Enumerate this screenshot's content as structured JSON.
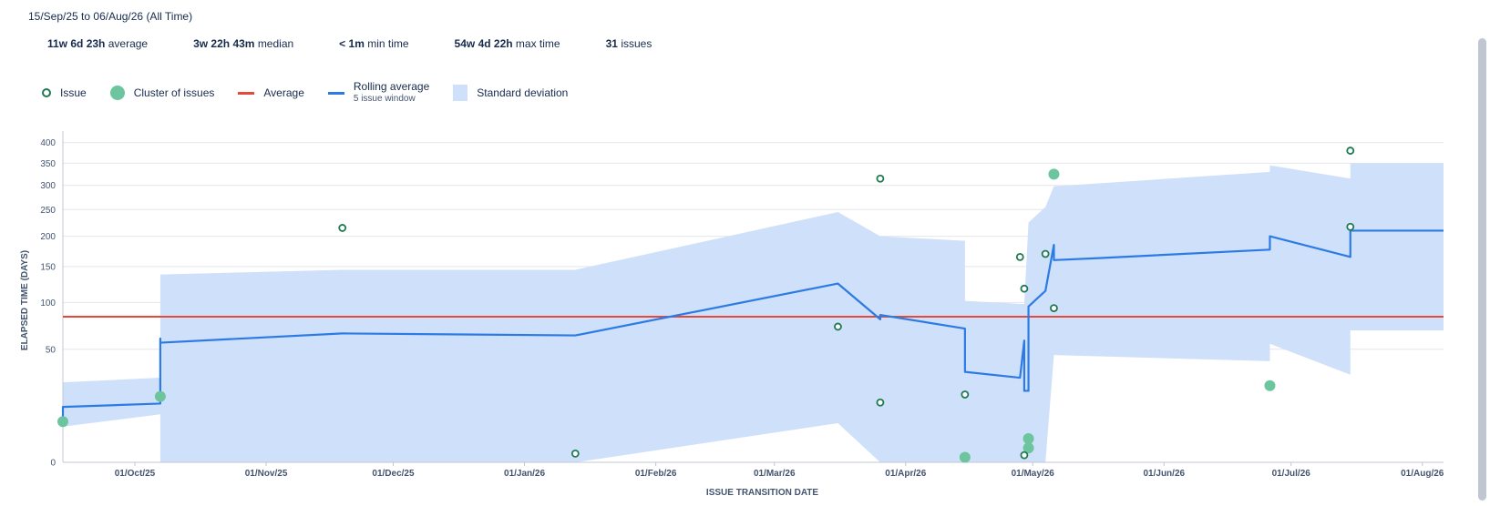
{
  "header": {
    "range": "15/Sep/25 to 06/Aug/26 (All Time)",
    "stats": [
      {
        "value": "11w 6d 23h",
        "label": "average"
      },
      {
        "value": "3w 22h 43m",
        "label": "median"
      },
      {
        "value": "< 1m",
        "label": "min time"
      },
      {
        "value": "54w 4d 22h",
        "label": "max time"
      },
      {
        "value": "31",
        "label": "issues"
      }
    ]
  },
  "legend": {
    "issue": "Issue",
    "cluster": "Cluster of issues",
    "average": "Average",
    "rolling": "Rolling average",
    "rolling_sub": "5 issue window",
    "std": "Standard deviation"
  },
  "colors": {
    "issue_stroke": "#1f7a52",
    "cluster_fill": "#6cc59e",
    "average_line": "#e5493a",
    "rolling_line": "#2c7be5",
    "std_band": "#cfe0fa",
    "grid": "#e4e6ea"
  },
  "chart_data": {
    "type": "scatter",
    "xlabel": "ISSUE TRANSITION DATE",
    "ylabel": "ELAPSED TIME (DAYS)",
    "x_scale": "date",
    "y_scale": "sqrt",
    "xlim": [
      "2025-09-14",
      "2026-08-06"
    ],
    "ylim": [
      0,
      420
    ],
    "y_ticks": [
      0,
      50,
      100,
      150,
      200,
      250,
      300,
      350,
      400
    ],
    "x_ticks": [
      {
        "date": "2025-10-01",
        "label": "01/Oct/25"
      },
      {
        "date": "2025-11-01",
        "label": "01/Nov/25"
      },
      {
        "date": "2025-12-01",
        "label": "01/Dec/25"
      },
      {
        "date": "2026-01-01",
        "label": "01/Jan/26"
      },
      {
        "date": "2026-02-01",
        "label": "01/Feb/26"
      },
      {
        "date": "2026-03-01",
        "label": "01/Mar/26"
      },
      {
        "date": "2026-04-01",
        "label": "01/Apr/26"
      },
      {
        "date": "2026-05-01",
        "label": "01/May/26"
      },
      {
        "date": "2026-06-01",
        "label": "01/Jun/26"
      },
      {
        "date": "2026-07-01",
        "label": "01/Jul/26"
      },
      {
        "date": "2026-08-01",
        "label": "01/Aug/26"
      }
    ],
    "average": 83,
    "issues": [
      {
        "x": "2025-11-19",
        "y": 215
      },
      {
        "x": "2026-01-13",
        "y": 0.3
      },
      {
        "x": "2026-03-16",
        "y": 72
      },
      {
        "x": "2026-03-26",
        "y": 315
      },
      {
        "x": "2026-03-26",
        "y": 14
      },
      {
        "x": "2026-04-15",
        "y": 18
      },
      {
        "x": "2026-04-28",
        "y": 165
      },
      {
        "x": "2026-04-29",
        "y": 118
      },
      {
        "x": "2026-04-29",
        "y": 0.2
      },
      {
        "x": "2026-05-04",
        "y": 170
      },
      {
        "x": "2026-05-06",
        "y": 93
      },
      {
        "x": "2026-07-15",
        "y": 380
      },
      {
        "x": "2026-07-15",
        "y": 217
      }
    ],
    "clusters": [
      {
        "x": "2025-09-14",
        "y": 6.5
      },
      {
        "x": "2025-10-07",
        "y": 17
      },
      {
        "x": "2026-04-15",
        "y": 0.1
      },
      {
        "x": "2026-04-30",
        "y": 2.2
      },
      {
        "x": "2026-04-30",
        "y": 0.8
      },
      {
        "x": "2026-05-06",
        "y": 325
      },
      {
        "x": "2026-06-26",
        "y": 23
      }
    ],
    "rolling_average": [
      {
        "x": "2025-09-14",
        "y": 8
      },
      {
        "x": "2025-09-14",
        "y": 12
      },
      {
        "x": "2025-10-07",
        "y": 13.5
      },
      {
        "x": "2025-10-07",
        "y": 60
      },
      {
        "x": "2025-10-07",
        "y": 56
      },
      {
        "x": "2025-11-19",
        "y": 65
      },
      {
        "x": "2026-01-13",
        "y": 63
      },
      {
        "x": "2026-03-16",
        "y": 125
      },
      {
        "x": "2026-03-26",
        "y": 80
      },
      {
        "x": "2026-03-26",
        "y": 85
      },
      {
        "x": "2026-04-15",
        "y": 70
      },
      {
        "x": "2026-04-15",
        "y": 32
      },
      {
        "x": "2026-04-28",
        "y": 28
      },
      {
        "x": "2026-04-29",
        "y": 58
      },
      {
        "x": "2026-04-29",
        "y": 20
      },
      {
        "x": "2026-04-30",
        "y": 20
      },
      {
        "x": "2026-04-30",
        "y": 95
      },
      {
        "x": "2026-05-04",
        "y": 115
      },
      {
        "x": "2026-05-06",
        "y": 185
      },
      {
        "x": "2026-05-06",
        "y": 160
      },
      {
        "x": "2026-05-16",
        "y": 163
      },
      {
        "x": "2026-06-26",
        "y": 177
      },
      {
        "x": "2026-06-26",
        "y": 200
      },
      {
        "x": "2026-07-15",
        "y": 165
      },
      {
        "x": "2026-07-15",
        "y": 210
      },
      {
        "x": "2026-08-06",
        "y": 210
      }
    ],
    "std_band": [
      {
        "x": "2025-09-14",
        "upper": 25,
        "lower": 5
      },
      {
        "x": "2025-10-07",
        "upper": 28,
        "lower": 9
      },
      {
        "x": "2025-10-07",
        "upper": 138,
        "lower": 0
      },
      {
        "x": "2025-11-19",
        "upper": 145,
        "lower": 0
      },
      {
        "x": "2026-01-13",
        "upper": 145,
        "lower": 0
      },
      {
        "x": "2026-03-16",
        "upper": 245,
        "lower": 6
      },
      {
        "x": "2026-03-26",
        "upper": 200,
        "lower": 0
      },
      {
        "x": "2026-04-15",
        "upper": 192,
        "lower": 0
      },
      {
        "x": "2026-04-15",
        "upper": 102,
        "lower": 0
      },
      {
        "x": "2026-04-29",
        "upper": 98,
        "lower": 0
      },
      {
        "x": "2026-04-30",
        "upper": 225,
        "lower": 0
      },
      {
        "x": "2026-05-04",
        "upper": 255,
        "lower": 0
      },
      {
        "x": "2026-05-06",
        "upper": 298,
        "lower": 45
      },
      {
        "x": "2026-06-26",
        "upper": 330,
        "lower": 40
      },
      {
        "x": "2026-06-26",
        "upper": 345,
        "lower": 55
      },
      {
        "x": "2026-07-15",
        "upper": 315,
        "lower": 30
      },
      {
        "x": "2026-07-15",
        "upper": 350,
        "lower": 68
      },
      {
        "x": "2026-08-06",
        "upper": 350,
        "lower": 68
      }
    ]
  }
}
